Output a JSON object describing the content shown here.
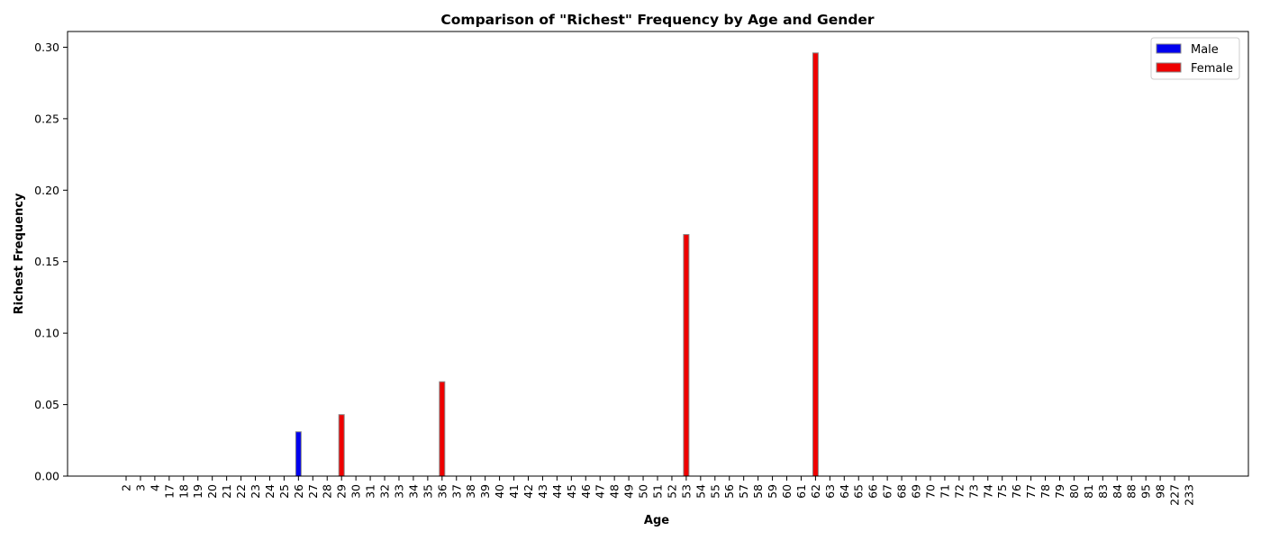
{
  "chart_data": {
    "type": "bar",
    "title": "Comparison of \"Richest\" Frequency by Age and Gender",
    "xlabel": "Age",
    "ylabel": "Richest Frequency",
    "ylim": [
      0,
      0.311
    ],
    "yticks": [
      "0.00",
      "0.05",
      "0.10",
      "0.15",
      "0.20",
      "0.25",
      "0.30"
    ],
    "ytick_values": [
      0,
      0.05,
      0.1,
      0.15,
      0.2,
      0.25,
      0.3
    ],
    "legend_position": "top-right",
    "grid": false,
    "categories": [
      "2",
      "3",
      "4",
      "17",
      "18",
      "19",
      "20",
      "21",
      "22",
      "23",
      "24",
      "25",
      "26",
      "27",
      "28",
      "29",
      "30",
      "31",
      "32",
      "33",
      "34",
      "35",
      "36",
      "37",
      "38",
      "39",
      "40",
      "41",
      "42",
      "43",
      "44",
      "45",
      "46",
      "47",
      "48",
      "49",
      "50",
      "51",
      "52",
      "53",
      "54",
      "55",
      "56",
      "57",
      "58",
      "59",
      "60",
      "61",
      "62",
      "63",
      "64",
      "65",
      "66",
      "67",
      "68",
      "69",
      "70",
      "71",
      "72",
      "73",
      "74",
      "75",
      "76",
      "77",
      "78",
      "79",
      "80",
      "81",
      "83",
      "84",
      "88",
      "95",
      "98",
      "227",
      "233"
    ],
    "series": [
      {
        "name": "Male",
        "color": "#0000ee",
        "values": [
          0,
          0,
          0,
          0,
          0,
          0,
          0,
          0,
          0,
          0,
          0,
          0,
          0.031,
          0,
          0,
          0,
          0,
          0,
          0,
          0,
          0,
          0,
          0,
          0,
          0,
          0,
          0,
          0,
          0,
          0,
          0,
          0,
          0,
          0,
          0,
          0,
          0,
          0,
          0,
          0,
          0,
          0,
          0,
          0,
          0,
          0,
          0,
          0,
          0,
          0,
          0,
          0,
          0,
          0,
          0,
          0,
          0,
          0,
          0,
          0,
          0,
          0,
          0,
          0,
          0,
          0,
          0,
          0,
          0,
          0,
          0,
          0,
          0,
          0,
          0
        ]
      },
      {
        "name": "Female",
        "color": "#ee0000",
        "values": [
          0,
          0,
          0,
          0,
          0,
          0,
          0,
          0,
          0,
          0,
          0,
          0,
          0,
          0,
          0,
          0.043,
          0,
          0,
          0,
          0,
          0,
          0,
          0.066,
          0,
          0,
          0,
          0,
          0,
          0,
          0,
          0,
          0,
          0,
          0,
          0,
          0,
          0,
          0,
          0,
          0.169,
          0,
          0,
          0,
          0,
          0,
          0,
          0,
          0,
          0.296,
          0,
          0,
          0,
          0,
          0,
          0,
          0,
          0,
          0,
          0,
          0,
          0,
          0,
          0,
          0,
          0,
          0,
          0,
          0,
          0,
          0,
          0,
          0,
          0,
          0,
          0
        ]
      }
    ]
  }
}
